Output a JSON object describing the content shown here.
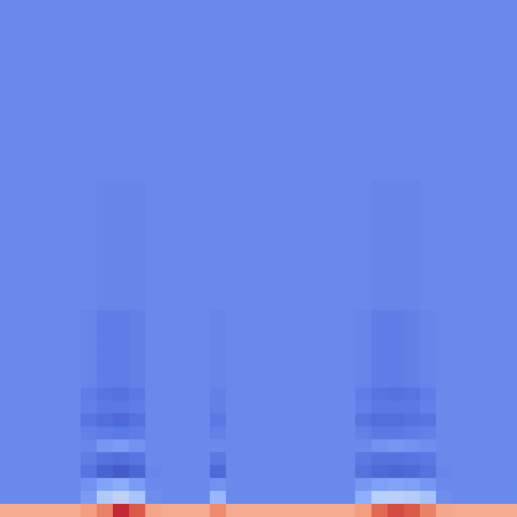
{
  "chart_data": {
    "type": "heatmap",
    "tick_labels": false,
    "color_range": [
      0,
      100
    ],
    "cells": [
      [
        16,
        16,
        16,
        16,
        16,
        16,
        16,
        16,
        16,
        16,
        16,
        16,
        16,
        16,
        16,
        16,
        16,
        16,
        16,
        16,
        16,
        16,
        16,
        16,
        16,
        16,
        16,
        16,
        16,
        16,
        16,
        16
      ],
      [
        16,
        16,
        16,
        16,
        16,
        16,
        16,
        16,
        16,
        16,
        16,
        16,
        16,
        16,
        16,
        16,
        16,
        16,
        16,
        16,
        16,
        16,
        16,
        16,
        16,
        16,
        16,
        16,
        16,
        16,
        16,
        16
      ],
      [
        16,
        16,
        16,
        16,
        16,
        16,
        16,
        16,
        16,
        16,
        16,
        16,
        16,
        16,
        16,
        16,
        16,
        16,
        16,
        16,
        16,
        16,
        16,
        16,
        16,
        16,
        16,
        16,
        16,
        16,
        16,
        16
      ],
      [
        16,
        16,
        16,
        16,
        16,
        16,
        16,
        16,
        16,
        16,
        16,
        16,
        16,
        16,
        16,
        16,
        16,
        16,
        16,
        16,
        16,
        16,
        16,
        16,
        16,
        16,
        16,
        16,
        16,
        16,
        16,
        16
      ],
      [
        16,
        16,
        16,
        16,
        16,
        16,
        16,
        16,
        16,
        16,
        16,
        16,
        16,
        16,
        16,
        16,
        16,
        16,
        16,
        16,
        16,
        16,
        16,
        16,
        16,
        16,
        16,
        16,
        16,
        16,
        16,
        16
      ],
      [
        16,
        16,
        16,
        16,
        16,
        16,
        16,
        16,
        16,
        16,
        16,
        16,
        16,
        16,
        16,
        16,
        16,
        16,
        16,
        16,
        16,
        16,
        16,
        16,
        16,
        16,
        16,
        16,
        16,
        16,
        16,
        16
      ],
      [
        16,
        16,
        16,
        16,
        16,
        16,
        16,
        16,
        16,
        16,
        16,
        16,
        16,
        16,
        16,
        16,
        16,
        16,
        16,
        16,
        16,
        16,
        16,
        16,
        16,
        16,
        16,
        16,
        16,
        16,
        16,
        16
      ],
      [
        16,
        16,
        16,
        16,
        16,
        16,
        16,
        16,
        16,
        16,
        16,
        16,
        16,
        16,
        16,
        16,
        16,
        16,
        16,
        16,
        16,
        16,
        16,
        16,
        16,
        16,
        16,
        16,
        16,
        16,
        16,
        16
      ],
      [
        16,
        16,
        16,
        16,
        16,
        16,
        16,
        16,
        16,
        16,
        16,
        16,
        16,
        16,
        16,
        16,
        16,
        16,
        16,
        16,
        16,
        16,
        16,
        16,
        16,
        16,
        16,
        16,
        16,
        16,
        16,
        16
      ],
      [
        16,
        16,
        16,
        16,
        16,
        16,
        16,
        16,
        16,
        16,
        16,
        16,
        16,
        16,
        16,
        16,
        16,
        16,
        16,
        16,
        16,
        16,
        16,
        16,
        16,
        16,
        16,
        16,
        16,
        16,
        16,
        16
      ],
      [
        16,
        16,
        16,
        16,
        16,
        16,
        16,
        16,
        16,
        16,
        16,
        16,
        16,
        16,
        16,
        16,
        16,
        16,
        16,
        16,
        16,
        16,
        16,
        16,
        16,
        16,
        16,
        16,
        16,
        16,
        16,
        16
      ],
      [
        16,
        16,
        16,
        16,
        16,
        16,
        16,
        16,
        16,
        16,
        16,
        16,
        16,
        16,
        16,
        16,
        16,
        16,
        16,
        16,
        16,
        16,
        16,
        16,
        16,
        16,
        16,
        16,
        16,
        16,
        16,
        16
      ],
      [
        16,
        16,
        16,
        16,
        16,
        16,
        16,
        16,
        16,
        16,
        16,
        16,
        16,
        16,
        16,
        16,
        16,
        16,
        16,
        16,
        16,
        16,
        16,
        16,
        16,
        16,
        16,
        16,
        16,
        16,
        16,
        16
      ],
      [
        16,
        16,
        16,
        16,
        16,
        16,
        16,
        16,
        16,
        16,
        16,
        16,
        16,
        16,
        16,
        16,
        16,
        16,
        16,
        16,
        16,
        16,
        16,
        16,
        16,
        16,
        16,
        16,
        16,
        16,
        16,
        16
      ],
      [
        16,
        16,
        16,
        16,
        16,
        16,
        15,
        15,
        15,
        16,
        16,
        16,
        16,
        16,
        16,
        16,
        16,
        16,
        16,
        16,
        16,
        16,
        16,
        15,
        15,
        15,
        16,
        16,
        16,
        16,
        16,
        16
      ],
      [
        16,
        16,
        16,
        16,
        16,
        16,
        15,
        15,
        15,
        16,
        16,
        16,
        16,
        16,
        16,
        16,
        16,
        16,
        16,
        16,
        16,
        16,
        16,
        15,
        15,
        15,
        16,
        16,
        16,
        16,
        16,
        16
      ],
      [
        16,
        16,
        16,
        16,
        16,
        16,
        15,
        15,
        15,
        16,
        16,
        16,
        16,
        16,
        16,
        16,
        16,
        16,
        16,
        16,
        16,
        16,
        16,
        15,
        15,
        15,
        16,
        16,
        16,
        16,
        16,
        16
      ],
      [
        16,
        16,
        16,
        16,
        16,
        16,
        15,
        15,
        15,
        16,
        16,
        16,
        16,
        16,
        16,
        16,
        16,
        16,
        16,
        16,
        16,
        16,
        16,
        15,
        15,
        15,
        16,
        16,
        16,
        16,
        16,
        16
      ],
      [
        16,
        16,
        16,
        16,
        16,
        16,
        15,
        15,
        15,
        16,
        16,
        16,
        16,
        16,
        16,
        16,
        16,
        16,
        16,
        16,
        16,
        16,
        16,
        15,
        15,
        15,
        16,
        16,
        16,
        16,
        16,
        16
      ],
      [
        16,
        16,
        16,
        16,
        16,
        16,
        15,
        15,
        15,
        16,
        16,
        16,
        16,
        16,
        16,
        16,
        16,
        16,
        16,
        16,
        16,
        16,
        16,
        15,
        15,
        15,
        16,
        16,
        16,
        16,
        16,
        16
      ],
      [
        16,
        16,
        16,
        16,
        16,
        16,
        15,
        15,
        15,
        16,
        16,
        16,
        16,
        16,
        16,
        16,
        16,
        16,
        16,
        16,
        16,
        16,
        16,
        15,
        15,
        15,
        16,
        16,
        16,
        16,
        16,
        16
      ],
      [
        16,
        16,
        16,
        16,
        16,
        16,
        15,
        15,
        15,
        16,
        16,
        16,
        16,
        16,
        16,
        16,
        16,
        16,
        16,
        16,
        16,
        16,
        16,
        15,
        15,
        15,
        16,
        16,
        16,
        16,
        16,
        16
      ],
      [
        16,
        16,
        16,
        16,
        16,
        16,
        15,
        15,
        15,
        16,
        16,
        16,
        16,
        16,
        16,
        16,
        16,
        16,
        16,
        16,
        16,
        16,
        16,
        15,
        15,
        15,
        16,
        16,
        16,
        16,
        16,
        16
      ],
      [
        16,
        16,
        16,
        16,
        16,
        16,
        15,
        15,
        15,
        16,
        16,
        16,
        16,
        16,
        16,
        16,
        16,
        16,
        16,
        16,
        16,
        16,
        16,
        15,
        15,
        15,
        16,
        16,
        16,
        16,
        16,
        16
      ],
      [
        16,
        16,
        16,
        16,
        16,
        15,
        13,
        13,
        14,
        16,
        16,
        16,
        16,
        15,
        16,
        16,
        16,
        16,
        16,
        16,
        16,
        16,
        15,
        13,
        13,
        14,
        15,
        16,
        16,
        16,
        16,
        16
      ],
      [
        16,
        16,
        16,
        16,
        16,
        15,
        13,
        13,
        14,
        16,
        16,
        16,
        16,
        15,
        16,
        16,
        16,
        16,
        16,
        16,
        16,
        16,
        15,
        13,
        13,
        14,
        15,
        16,
        16,
        16,
        16,
        16
      ],
      [
        16,
        16,
        16,
        16,
        16,
        15,
        13,
        13,
        14,
        16,
        16,
        16,
        16,
        15,
        16,
        16,
        16,
        16,
        16,
        16,
        16,
        16,
        15,
        13,
        13,
        14,
        15,
        16,
        16,
        16,
        16,
        16
      ],
      [
        16,
        16,
        16,
        16,
        16,
        15,
        13,
        13,
        14,
        16,
        16,
        16,
        16,
        15,
        16,
        16,
        16,
        16,
        16,
        16,
        16,
        16,
        15,
        13,
        13,
        14,
        15,
        16,
        16,
        16,
        16,
        16
      ],
      [
        16,
        16,
        16,
        16,
        16,
        15,
        13,
        13,
        14,
        16,
        16,
        16,
        16,
        15,
        16,
        16,
        16,
        16,
        16,
        16,
        16,
        16,
        15,
        13,
        13,
        14,
        15,
        16,
        16,
        16,
        16,
        16
      ],
      [
        16,
        16,
        16,
        16,
        16,
        15,
        13,
        13,
        14,
        16,
        16,
        16,
        16,
        15,
        16,
        16,
        16,
        16,
        16,
        16,
        16,
        16,
        15,
        13,
        13,
        14,
        15,
        16,
        16,
        16,
        16,
        16
      ],
      [
        16,
        16,
        16,
        16,
        16,
        13,
        11,
        10,
        12,
        16,
        16,
        16,
        16,
        14,
        16,
        16,
        16,
        16,
        16,
        16,
        16,
        16,
        13,
        11,
        10,
        11,
        13,
        16,
        16,
        16,
        16,
        16
      ],
      [
        16,
        16,
        16,
        16,
        16,
        14,
        12,
        12,
        13,
        16,
        16,
        16,
        16,
        14,
        16,
        16,
        16,
        16,
        16,
        16,
        16,
        16,
        14,
        12,
        12,
        12,
        14,
        16,
        16,
        16,
        16,
        16
      ],
      [
        16,
        16,
        16,
        16,
        16,
        11,
        9,
        8,
        10,
        16,
        16,
        16,
        16,
        12,
        16,
        16,
        16,
        16,
        16,
        16,
        16,
        16,
        11,
        9,
        9,
        10,
        11,
        16,
        16,
        16,
        16,
        16
      ],
      [
        16,
        16,
        16,
        16,
        16,
        14,
        13,
        12,
        13,
        16,
        16,
        16,
        16,
        14,
        16,
        16,
        16,
        16,
        16,
        16,
        16,
        16,
        14,
        12,
        12,
        13,
        14,
        16,
        16,
        16,
        16,
        16
      ],
      [
        16,
        16,
        16,
        16,
        16,
        15,
        19,
        20,
        18,
        16,
        16,
        16,
        16,
        16,
        16,
        16,
        16,
        16,
        16,
        16,
        16,
        16,
        16,
        18,
        19,
        18,
        17,
        16,
        16,
        16,
        16,
        16
      ],
      [
        16,
        16,
        16,
        16,
        16,
        13,
        10,
        9,
        11,
        16,
        16,
        16,
        16,
        12,
        16,
        16,
        16,
        16,
        16,
        16,
        16,
        16,
        12,
        10,
        10,
        11,
        12,
        16,
        16,
        16,
        16,
        16
      ],
      [
        16,
        16,
        16,
        16,
        16,
        11,
        6,
        4,
        7,
        15,
        16,
        16,
        16,
        8,
        16,
        16,
        16,
        16,
        16,
        16,
        16,
        16,
        10,
        8,
        7,
        8,
        10,
        15,
        16,
        16,
        16,
        16
      ],
      [
        16,
        16,
        16,
        16,
        16,
        18,
        22,
        24,
        20,
        16,
        16,
        16,
        16,
        18,
        16,
        16,
        16,
        16,
        16,
        16,
        16,
        16,
        19,
        21,
        22,
        21,
        19,
        16,
        16,
        16,
        16,
        16
      ],
      [
        16,
        16,
        16,
        16,
        16,
        20,
        35,
        40,
        33,
        17,
        16,
        16,
        16,
        28,
        16,
        16,
        16,
        16,
        16,
        16,
        16,
        16,
        25,
        38,
        38,
        36,
        32,
        17,
        16,
        16,
        16,
        16
      ],
      [
        70,
        70,
        70,
        70,
        70,
        74,
        80,
        95,
        88,
        72,
        70,
        70,
        70,
        78,
        70,
        70,
        70,
        70,
        70,
        70,
        70,
        70,
        74,
        85,
        90,
        88,
        80,
        71,
        70,
        70,
        70,
        70
      ]
    ]
  }
}
